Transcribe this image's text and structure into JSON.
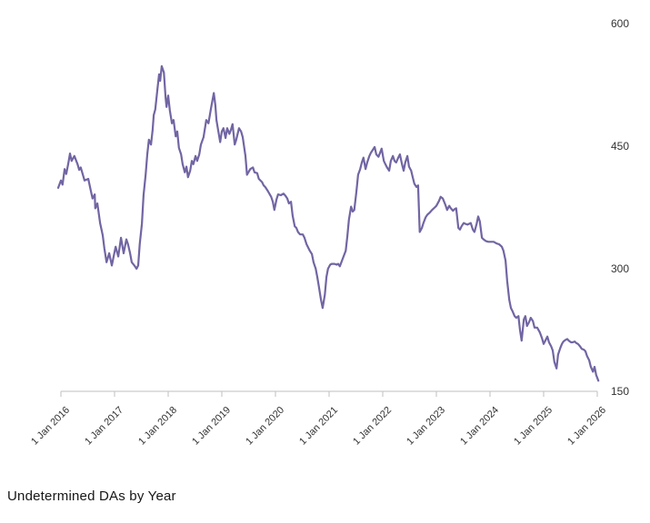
{
  "chart_data": {
    "type": "line",
    "title": "Undetermined DAs by Year",
    "grid": false,
    "legend": "none",
    "line_color": "#7265A3",
    "axis_color": "#BFBFBF",
    "label_color": "#333333",
    "x_axis": {
      "tick_labels": [
        "1 Jan 2016",
        "1 Jan 2017",
        "1 Jan 2018",
        "1 Jan 2019",
        "1 Jan 2020",
        "1 Jan 2021",
        "1 Jan 2022",
        "1 Jan 2023",
        "1 Jan 2024",
        "1 Jan 2025",
        "1 Jan 2026"
      ],
      "labels_rotation_deg": -45
    },
    "y_axis": {
      "ticks": [
        150,
        300,
        450,
        600
      ],
      "range": [
        150,
        600
      ],
      "labels_side": "right"
    },
    "series": [
      {
        "name": "Undetermined DAs",
        "color": "#7265A3",
        "x_unit": "years_since_2016_jan_1",
        "points": [
          [
            -0.05,
            399
          ],
          [
            0,
            408
          ],
          [
            0.03,
            403
          ],
          [
            0.07,
            422
          ],
          [
            0.1,
            416
          ],
          [
            0.14,
            430
          ],
          [
            0.17,
            441
          ],
          [
            0.2,
            432
          ],
          [
            0.25,
            438
          ],
          [
            0.31,
            428
          ],
          [
            0.34,
            421
          ],
          [
            0.37,
            424
          ],
          [
            0.41,
            415
          ],
          [
            0.44,
            408
          ],
          [
            0.51,
            410
          ],
          [
            0.56,
            395
          ],
          [
            0.59,
            386
          ],
          [
            0.63,
            391
          ],
          [
            0.64,
            374
          ],
          [
            0.68,
            380
          ],
          [
            0.73,
            356
          ],
          [
            0.78,
            341
          ],
          [
            0.81,
            325
          ],
          [
            0.85,
            308
          ],
          [
            0.9,
            319
          ],
          [
            0.95,
            304
          ],
          [
            1.02,
            327
          ],
          [
            1.07,
            315
          ],
          [
            1.12,
            338
          ],
          [
            1.17,
            319
          ],
          [
            1.22,
            336
          ],
          [
            1.25,
            330
          ],
          [
            1.29,
            319
          ],
          [
            1.32,
            308
          ],
          [
            1.37,
            304
          ],
          [
            1.41,
            300
          ],
          [
            1.44,
            304
          ],
          [
            1.47,
            330
          ],
          [
            1.51,
            355
          ],
          [
            1.54,
            390
          ],
          [
            1.58,
            415
          ],
          [
            1.61,
            440
          ],
          [
            1.64,
            458
          ],
          [
            1.68,
            452
          ],
          [
            1.71,
            470
          ],
          [
            1.73,
            488
          ],
          [
            1.76,
            495
          ],
          [
            1.8,
            520
          ],
          [
            1.83,
            538
          ],
          [
            1.85,
            530
          ],
          [
            1.88,
            548
          ],
          [
            1.92,
            540
          ],
          [
            1.95,
            510
          ],
          [
            1.97,
            498
          ],
          [
            2,
            512
          ],
          [
            2.03,
            494
          ],
          [
            2.07,
            478
          ],
          [
            2.1,
            482
          ],
          [
            2.14,
            462
          ],
          [
            2.17,
            468
          ],
          [
            2.2,
            448
          ],
          [
            2.24,
            440
          ],
          [
            2.27,
            428
          ],
          [
            2.31,
            418
          ],
          [
            2.34,
            425
          ],
          [
            2.37,
            412
          ],
          [
            2.41,
            420
          ],
          [
            2.44,
            432
          ],
          [
            2.47,
            428
          ],
          [
            2.51,
            438
          ],
          [
            2.54,
            432
          ],
          [
            2.58,
            440
          ],
          [
            2.61,
            452
          ],
          [
            2.66,
            461
          ],
          [
            2.71,
            482
          ],
          [
            2.75,
            478
          ],
          [
            2.8,
            497
          ],
          [
            2.85,
            515
          ],
          [
            2.88,
            500
          ],
          [
            2.9,
            482
          ],
          [
            2.93,
            470
          ],
          [
            2.97,
            455
          ],
          [
            3,
            468
          ],
          [
            3.03,
            472
          ],
          [
            3.07,
            460
          ],
          [
            3.1,
            472
          ],
          [
            3.14,
            465
          ],
          [
            3.17,
            470
          ],
          [
            3.2,
            477
          ],
          [
            3.24,
            452
          ],
          [
            3.27,
            458
          ],
          [
            3.32,
            472
          ],
          [
            3.36,
            468
          ],
          [
            3.39,
            461
          ],
          [
            3.44,
            438
          ],
          [
            3.47,
            415
          ],
          [
            3.53,
            422
          ],
          [
            3.58,
            424
          ],
          [
            3.61,
            418
          ],
          [
            3.66,
            417
          ],
          [
            3.69,
            410
          ],
          [
            3.75,
            406
          ],
          [
            3.78,
            402
          ],
          [
            3.81,
            400
          ],
          [
            3.86,
            395
          ],
          [
            3.92,
            388
          ],
          [
            3.95,
            382
          ],
          [
            3.98,
            372
          ],
          [
            4.02,
            385
          ],
          [
            4.05,
            391
          ],
          [
            4.1,
            390
          ],
          [
            4.15,
            392
          ],
          [
            4.19,
            389
          ],
          [
            4.22,
            386
          ],
          [
            4.25,
            380
          ],
          [
            4.29,
            382
          ],
          [
            4.32,
            365
          ],
          [
            4.36,
            352
          ],
          [
            4.39,
            350
          ],
          [
            4.42,
            345
          ],
          [
            4.46,
            342
          ],
          [
            4.51,
            342
          ],
          [
            4.54,
            338
          ],
          [
            4.58,
            330
          ],
          [
            4.61,
            326
          ],
          [
            4.64,
            322
          ],
          [
            4.68,
            318
          ],
          [
            4.71,
            308
          ],
          [
            4.75,
            300
          ],
          [
            4.78,
            290
          ],
          [
            4.81,
            278
          ],
          [
            4.85,
            262
          ],
          [
            4.88,
            252
          ],
          [
            4.92,
            268
          ],
          [
            4.95,
            290
          ],
          [
            4.98,
            300
          ],
          [
            5.02,
            305
          ],
          [
            5.05,
            306
          ],
          [
            5.1,
            306
          ],
          [
            5.14,
            305
          ],
          [
            5.17,
            306
          ],
          [
            5.2,
            303
          ],
          [
            5.24,
            310
          ],
          [
            5.27,
            315
          ],
          [
            5.31,
            322
          ],
          [
            5.34,
            340
          ],
          [
            5.37,
            360
          ],
          [
            5.41,
            376
          ],
          [
            5.44,
            370
          ],
          [
            5.47,
            372
          ],
          [
            5.51,
            395
          ],
          [
            5.54,
            415
          ],
          [
            5.58,
            422
          ],
          [
            5.61,
            430
          ],
          [
            5.64,
            436
          ],
          [
            5.68,
            422
          ],
          [
            5.71,
            430
          ],
          [
            5.75,
            438
          ],
          [
            5.78,
            442
          ],
          [
            5.81,
            445
          ],
          [
            5.85,
            449
          ],
          [
            5.88,
            440
          ],
          [
            5.92,
            437
          ],
          [
            5.95,
            442
          ],
          [
            5.98,
            447
          ],
          [
            6.02,
            432
          ],
          [
            6.05,
            428
          ],
          [
            6.08,
            424
          ],
          [
            6.12,
            420
          ],
          [
            6.15,
            432
          ],
          [
            6.19,
            438
          ],
          [
            6.22,
            432
          ],
          [
            6.25,
            430
          ],
          [
            6.29,
            436
          ],
          [
            6.32,
            440
          ],
          [
            6.36,
            428
          ],
          [
            6.39,
            420
          ],
          [
            6.42,
            430
          ],
          [
            6.46,
            438
          ],
          [
            6.49,
            425
          ],
          [
            6.53,
            420
          ],
          [
            6.56,
            412
          ],
          [
            6.59,
            404
          ],
          [
            6.63,
            400
          ],
          [
            6.66,
            402
          ],
          [
            6.69,
            345
          ],
          [
            6.73,
            350
          ],
          [
            6.76,
            356
          ],
          [
            6.8,
            363
          ],
          [
            6.83,
            366
          ],
          [
            6.88,
            369
          ],
          [
            6.92,
            372
          ],
          [
            6.97,
            375
          ],
          [
            7,
            377
          ],
          [
            7.05,
            383
          ],
          [
            7.08,
            388
          ],
          [
            7.12,
            386
          ],
          [
            7.17,
            378
          ],
          [
            7.2,
            372
          ],
          [
            7.24,
            377
          ],
          [
            7.27,
            374
          ],
          [
            7.31,
            371
          ],
          [
            7.34,
            373
          ],
          [
            7.37,
            374
          ],
          [
            7.41,
            350
          ],
          [
            7.44,
            348
          ],
          [
            7.47,
            352
          ],
          [
            7.51,
            356
          ],
          [
            7.54,
            355
          ],
          [
            7.58,
            354
          ],
          [
            7.61,
            355
          ],
          [
            7.64,
            356
          ],
          [
            7.68,
            348
          ],
          [
            7.71,
            345
          ],
          [
            7.75,
            355
          ],
          [
            7.78,
            364
          ],
          [
            7.81,
            358
          ],
          [
            7.85,
            338
          ],
          [
            7.88,
            336
          ],
          [
            7.92,
            334
          ],
          [
            7.97,
            333
          ],
          [
            8.02,
            333
          ],
          [
            8.07,
            333
          ],
          [
            8.12,
            331
          ],
          [
            8.17,
            330
          ],
          [
            8.22,
            327
          ],
          [
            8.25,
            322
          ],
          [
            8.29,
            310
          ],
          [
            8.32,
            285
          ],
          [
            8.36,
            262
          ],
          [
            8.39,
            252
          ],
          [
            8.42,
            248
          ],
          [
            8.46,
            242
          ],
          [
            8.49,
            240
          ],
          [
            8.53,
            242
          ],
          [
            8.56,
            225
          ],
          [
            8.59,
            212
          ],
          [
            8.63,
            238
          ],
          [
            8.66,
            242
          ],
          [
            8.69,
            230
          ],
          [
            8.73,
            235
          ],
          [
            8.76,
            240
          ],
          [
            8.8,
            236
          ],
          [
            8.83,
            228
          ],
          [
            8.88,
            228
          ],
          [
            8.93,
            222
          ],
          [
            8.97,
            215
          ],
          [
            9,
            208
          ],
          [
            9.03,
            212
          ],
          [
            9.07,
            217
          ],
          [
            9.1,
            210
          ],
          [
            9.14,
            205
          ],
          [
            9.17,
            200
          ],
          [
            9.2,
            186
          ],
          [
            9.24,
            178
          ],
          [
            9.27,
            195
          ],
          [
            9.31,
            203
          ],
          [
            9.34,
            208
          ],
          [
            9.37,
            211
          ],
          [
            9.41,
            213
          ],
          [
            9.44,
            214
          ],
          [
            9.47,
            212
          ],
          [
            9.51,
            210
          ],
          [
            9.54,
            210
          ],
          [
            9.58,
            211
          ],
          [
            9.61,
            209
          ],
          [
            9.64,
            208
          ],
          [
            9.68,
            205
          ],
          [
            9.71,
            202
          ],
          [
            9.75,
            201
          ],
          [
            9.78,
            199
          ],
          [
            9.81,
            193
          ],
          [
            9.85,
            188
          ],
          [
            9.88,
            180
          ],
          [
            9.92,
            174
          ],
          [
            9.95,
            180
          ],
          [
            9.98,
            170
          ],
          [
            10.02,
            163
          ]
        ]
      }
    ]
  }
}
